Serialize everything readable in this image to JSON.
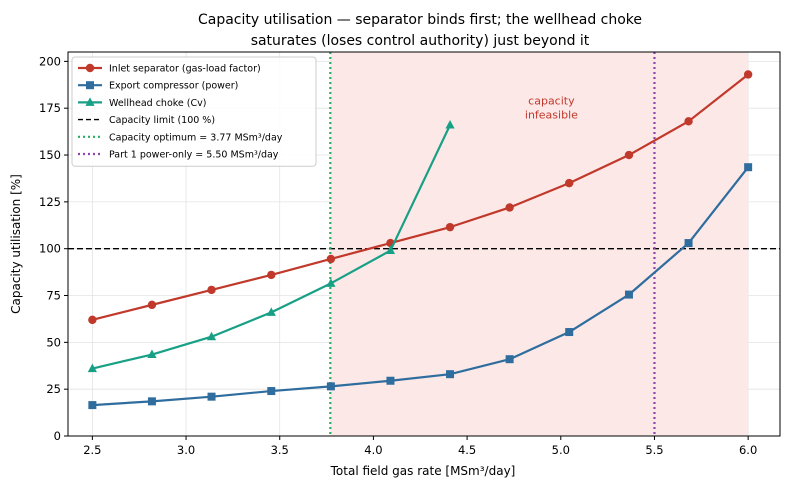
{
  "chart_data": {
    "type": "line",
    "title_lines": [
      "Capacity utilisation — separator binds first; the wellhead choke",
      "saturates (loses control authority) just beyond it"
    ],
    "xlabel": "Total field gas rate [MSm³/day]",
    "ylabel": "Capacity utilisation [%]",
    "xlim": [
      2.37,
      6.17
    ],
    "ylim": [
      0,
      205
    ],
    "xticks": [
      2.5,
      3.0,
      3.5,
      4.0,
      4.5,
      5.0,
      5.5,
      6.0
    ],
    "xtick_labels": [
      "2.5",
      "3.0",
      "3.5",
      "4.0",
      "4.5",
      "5.0",
      "5.5",
      "6.0"
    ],
    "yticks": [
      0,
      25,
      50,
      75,
      100,
      125,
      150,
      175,
      200
    ],
    "ytick_labels": [
      "0",
      "25",
      "50",
      "75",
      "100",
      "125",
      "150",
      "175",
      "200"
    ],
    "grid": true,
    "legend_position": "upper-left",
    "series": [
      {
        "name": "Inlet separator (gas-load factor)",
        "color": "#c0392b",
        "marker": "circle",
        "x": [
          2.5,
          2.818,
          3.136,
          3.455,
          3.773,
          4.091,
          4.409,
          4.727,
          5.045,
          5.364,
          5.682,
          6.0
        ],
        "y": [
          62,
          70,
          78,
          86,
          94.5,
          103,
          111.5,
          122,
          135,
          150,
          168,
          193
        ]
      },
      {
        "name": "Export compressor (power)",
        "color": "#2e6d9e",
        "marker": "square",
        "x": [
          2.5,
          2.818,
          3.136,
          3.455,
          3.773,
          4.091,
          4.409,
          4.727,
          5.045,
          5.364,
          5.682,
          6.0
        ],
        "y": [
          16.5,
          18.5,
          21,
          24,
          26.5,
          29.5,
          33,
          41,
          55.5,
          75.5,
          103,
          143.5
        ]
      },
      {
        "name": "Wellhead choke (Cv)",
        "color": "#17a085",
        "marker": "triangle",
        "x": [
          2.5,
          2.818,
          3.136,
          3.455,
          3.773,
          4.091,
          4.409
        ],
        "y": [
          36,
          43.5,
          53,
          66,
          81.5,
          99,
          166
        ]
      }
    ],
    "reference_lines": [
      {
        "name": "Capacity limit (100 %)",
        "orientation": "horizontal",
        "value": 100,
        "color": "#000000",
        "style": "dashed"
      },
      {
        "name": "Capacity optimum = 3.77 MSm³/day",
        "orientation": "vertical",
        "value": 3.77,
        "color": "#27ae60",
        "style": "dotted"
      },
      {
        "name": "Part 1 power-only = 5.50 MSm³/day",
        "orientation": "vertical",
        "value": 5.5,
        "color": "#8e44ad",
        "style": "dotted"
      }
    ],
    "shaded_region": {
      "x_from": 3.77,
      "x_to": 6.0,
      "color": "#fde8e8",
      "label_lines": [
        "capacity",
        "infeasible"
      ],
      "label_x": 4.95,
      "label_y": 177
    }
  }
}
